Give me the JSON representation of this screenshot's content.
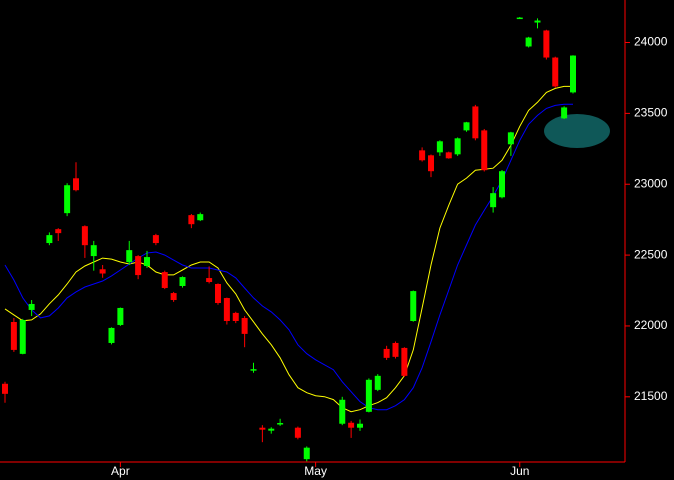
{
  "chart_data": {
    "type": "candlestick",
    "categories": [
      null,
      null,
      null,
      null,
      null,
      null,
      null,
      null,
      null,
      null,
      null,
      null,
      null,
      "Apr",
      null,
      null,
      null,
      null,
      null,
      null,
      null,
      null,
      null,
      null,
      null,
      null,
      null,
      null,
      null,
      null,
      null,
      null,
      null,
      null,
      null,
      "May",
      null,
      null,
      null,
      null,
      null,
      null,
      null,
      null,
      null,
      null,
      null,
      null,
      null,
      null,
      null,
      null,
      null,
      null,
      null,
      null,
      null,
      null,
      "Jun",
      null,
      null,
      null,
      null,
      null,
      null
    ],
    "open": [
      21592,
      22028,
      21803,
      22113,
      null,
      22585,
      22683,
      22796,
      23042,
      22704,
      22493,
      22400,
      21880,
      22007,
      22450,
      22493,
      22423,
      22641,
      22380,
      22232,
      22282,
      22782,
      22746,
      22338,
      22296,
      22197,
      22092,
      22056,
      21685,
      21282,
      21261,
      21305,
      null,
      21282,
      21060,
      null,
      null,
      null,
      21310,
      21317,
      21282,
      21394,
      21549,
      21838,
      21880,
      21845,
      22035,
      23239,
      23204,
      23225,
      23225,
      23211,
      23380,
      23549,
      23380,
      22838,
      22908,
      23282,
      24170,
      23972,
      24141,
      24085,
      23894,
      23465,
      23648
    ],
    "high": [
      21606,
      22056,
      22050,
      22183,
      null,
      22660,
      22690,
      23007,
      23155,
      22710,
      22600,
      22430,
      21990,
      22130,
      22600,
      22500,
      22530,
      22650,
      22390,
      22240,
      22350,
      22790,
      22800,
      22420,
      22300,
      22200,
      22100,
      22070,
      21740,
      21300,
      21285,
      21345,
      null,
      21290,
      21150,
      null,
      null,
      null,
      21500,
      21330,
      21340,
      21630,
      21660,
      21860,
      21890,
      21850,
      22250,
      23260,
      23210,
      23310,
      23230,
      23330,
      23440,
      23560,
      23390,
      22980,
      23100,
      23370,
      24180,
      24040,
      24170,
      24090,
      23900,
      23550,
      23910
    ],
    "low": [
      21458,
      21817,
      21800,
      22070,
      null,
      22570,
      22600,
      22775,
      22950,
      22480,
      22390,
      22340,
      21870,
      22000,
      22430,
      22330,
      22410,
      22570,
      22260,
      22170,
      22270,
      22690,
      22740,
      22300,
      22150,
      22010,
      22020,
      21850,
      21670,
      21180,
      21240,
      21295,
      null,
      21200,
      21045,
      null,
      null,
      null,
      21300,
      21210,
      21260,
      21390,
      21540,
      21760,
      21770,
      21640,
      22030,
      23160,
      23050,
      23200,
      23180,
      23200,
      23370,
      23310,
      23090,
      22800,
      22900,
      23200,
      24170,
      23965,
      24100,
      23880,
      23680,
      23460,
      23640
    ],
    "close": [
      21521,
      21831,
      22042,
      22155,
      null,
      22641,
      22655,
      22993,
      22958,
      22570,
      22570,
      22370,
      21986,
      22127,
      22535,
      22359,
      22486,
      22585,
      22268,
      22183,
      22345,
      22718,
      22789,
      22310,
      22162,
      22035,
      22035,
      21944,
      21695,
      21268,
      21275,
      21315,
      null,
      21211,
      21141,
      null,
      null,
      null,
      21479,
      21282,
      21310,
      21620,
      21648,
      21775,
      21782,
      21648,
      22246,
      23169,
      23092,
      23303,
      23183,
      23324,
      23437,
      23324,
      23099,
      22937,
      23092,
      23366,
      24176,
      24035,
      24155,
      23894,
      23690,
      23542,
      23908
    ],
    "up_color": "#00ff00",
    "down_color": "#ff0000",
    "lines": [
      {
        "color": "#ffff00",
        "values": [
          22120,
          22078,
          22036,
          22043,
          22085,
          22156,
          22219,
          22296,
          22381,
          22423,
          22451,
          22479,
          22472,
          22451,
          22437,
          22451,
          22430,
          22381,
          22360,
          22360,
          22395,
          22430,
          22451,
          22451,
          22409,
          22303,
          22226,
          22113,
          22029,
          21944,
          21867,
          21775,
          21656,
          21564,
          21529,
          21508,
          21501,
          21480,
          21423,
          21395,
          21409,
          21437,
          21459,
          21494,
          21564,
          21649,
          21832,
          22127,
          22430,
          22691,
          22852,
          23000,
          23043,
          23099,
          23106,
          23113,
          23169,
          23275,
          23409,
          23521,
          23578,
          23648,
          23676,
          23690,
          23690
        ]
      },
      {
        "color": "#0000ff",
        "values": [
          22430,
          22324,
          22198,
          22113,
          22057,
          22071,
          22127,
          22198,
          22240,
          22275,
          22296,
          22317,
          22353,
          22395,
          22437,
          22479,
          22515,
          22522,
          22500,
          22465,
          22430,
          22409,
          22409,
          22409,
          22395,
          22381,
          22339,
          22268,
          22198,
          22141,
          22099,
          22043,
          21973,
          21867,
          21804,
          21761,
          21726,
          21691,
          21606,
          21536,
          21466,
          21423,
          21409,
          21409,
          21437,
          21480,
          21564,
          21705,
          21888,
          22078,
          22254,
          22430,
          22571,
          22712,
          22817,
          22916,
          23028,
          23169,
          23310,
          23423,
          23486,
          23535,
          23556,
          23564,
          23564
        ]
      }
    ],
    "ylim": [
      21040,
      24300
    ],
    "yticks": [
      21500,
      22000,
      22500,
      23000,
      23500,
      24000
    ],
    "axis_color": "#ff0000"
  }
}
